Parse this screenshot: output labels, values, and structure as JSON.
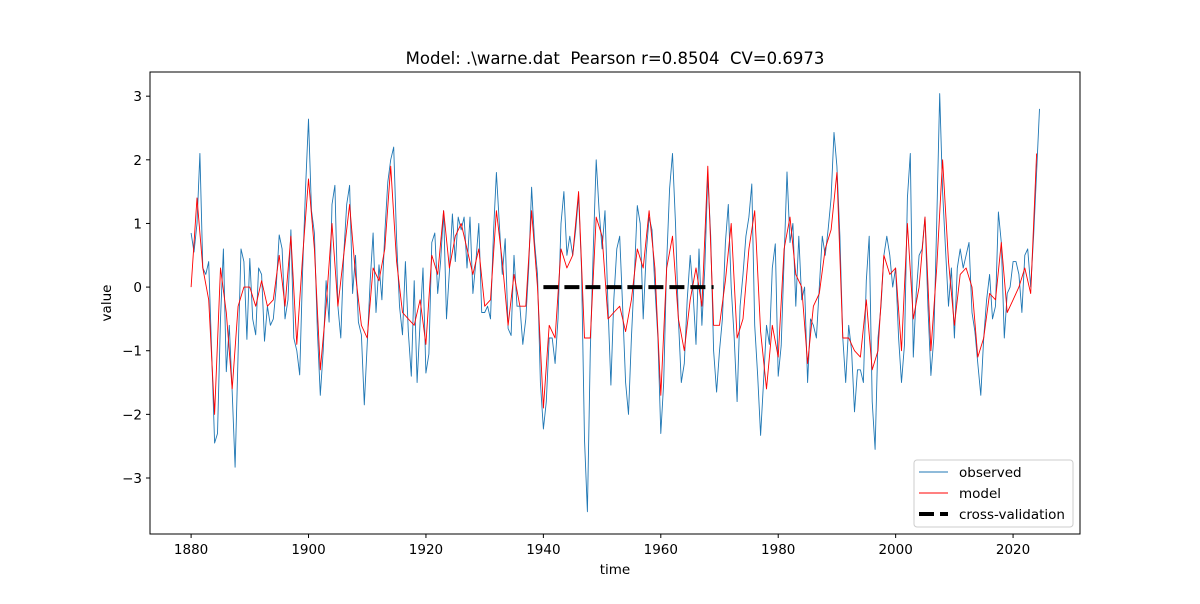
{
  "chart_data": {
    "type": "line",
    "title": "Model: .\\warne.dat  Pearson r=0.8504  CV=0.6973",
    "xlabel": "time",
    "ylabel": "value",
    "xlim": [
      1873,
      2031.4
    ],
    "ylim": [
      -3.88,
      3.38
    ],
    "xticks": [
      1880,
      1900,
      1920,
      1940,
      1960,
      1980,
      2000,
      2020
    ],
    "yticks": [
      -3,
      -2,
      -1,
      0,
      1,
      2,
      3
    ],
    "ytick_labels": [
      "−3",
      "−2",
      "−1",
      "0",
      "1",
      "2",
      "3"
    ],
    "grid": false,
    "legend_placement": "lower-right",
    "series": [
      {
        "name": "observed",
        "color": "#1f77b4",
        "x_start": 1880,
        "x_step": 0.5,
        "values": [
          0.85,
          0.55,
          1.0,
          2.1,
          0.3,
          0.2,
          0.4,
          -1.0,
          -2.45,
          -2.3,
          -0.5,
          0.6,
          -1.33,
          -0.6,
          -1.65,
          -2.83,
          -1.05,
          0.6,
          0.4,
          -0.82,
          0.45,
          -0.5,
          -0.75,
          0.3,
          0.2,
          -0.85,
          -0.3,
          -0.6,
          -0.5,
          0.0,
          0.82,
          0.6,
          -0.5,
          -0.2,
          0.9,
          -0.8,
          -1.0,
          -1.38,
          0.3,
          1.57,
          2.64,
          1.2,
          0.85,
          -0.66,
          -1.7,
          -1.0,
          0.1,
          -0.55,
          1.3,
          1.6,
          -0.3,
          -0.8,
          0.5,
          1.3,
          1.6,
          -0.1,
          0.5,
          -0.55,
          -0.75,
          -1.85,
          -0.9,
          0.1,
          0.85,
          -0.4,
          0.35,
          -0.2,
          0.85,
          1.65,
          2.0,
          2.2,
          0.75,
          -0.3,
          -0.75,
          0.4,
          -0.7,
          -1.4,
          0.1,
          -1.5,
          -0.55,
          0.3,
          -1.35,
          -1.05,
          0.7,
          0.85,
          -0.1,
          0.4,
          1.2,
          -0.5,
          0.25,
          1.15,
          0.4,
          1.1,
          0.9,
          1.1,
          0.3,
          1.1,
          -0.1,
          0.4,
          1.0,
          -0.4,
          -0.4,
          -0.3,
          -0.5,
          0.86,
          1.8,
          1.0,
          0.2,
          0.76,
          -0.65,
          -0.76,
          0.5,
          -0.3,
          -0.3,
          -0.9,
          -0.5,
          0.3,
          1.57,
          0.7,
          0.2,
          -1.5,
          -2.23,
          -1.8,
          -0.8,
          -0.8,
          -1.2,
          -0.5,
          1.0,
          1.5,
          0.5,
          0.8,
          0.5,
          0.9,
          1.44,
          0.3,
          -2.4,
          -3.53,
          -1.0,
          0.6,
          2.0,
          1.2,
          0.6,
          1.2,
          -0.3,
          -1.54,
          -0.2,
          0.6,
          0.8,
          -0.3,
          -1.5,
          -2.0,
          -0.8,
          0.2,
          1.28,
          1.0,
          -0.5,
          0.5,
          1.1,
          0.9,
          0.0,
          -0.8,
          -2.3,
          -1.5,
          0.4,
          1.55,
          2.1,
          1.0,
          -0.5,
          -1.5,
          -1.2,
          -0.2,
          0.5,
          -0.1,
          -0.9,
          0.6,
          -0.6,
          0.3,
          1.75,
          0.8,
          -1.0,
          -1.65,
          -1.0,
          -0.5,
          0.7,
          1.3,
          0.0,
          -0.8,
          -1.8,
          -0.3,
          0.2,
          0.8,
          1.1,
          1.62,
          -0.6,
          -1.4,
          -2.33,
          -1.5,
          -0.6,
          -0.9,
          0.3,
          0.68,
          -1.4,
          -0.92,
          0.44,
          1.81,
          0.7,
          1.0,
          -0.3,
          0.8,
          -0.2,
          0.0,
          -1.5,
          -0.5,
          -0.6,
          -0.8,
          0.0,
          0.8,
          0.5,
          0.9,
          1.4,
          2.43,
          1.9,
          0.8,
          -0.8,
          -1.5,
          -0.6,
          -1.0,
          -1.96,
          -1.3,
          -1.3,
          -1.5,
          0.1,
          0.8,
          -1.8,
          -2.55,
          -0.8,
          -0.3,
          0.5,
          0.8,
          0.5,
          0.0,
          0.3,
          -0.8,
          -1.5,
          -0.9,
          1.4,
          2.1,
          -1.1,
          -0.1,
          0.5,
          0.6,
          1.1,
          -0.3,
          -1.39,
          -0.8,
          1.0,
          3.04,
          1.5,
          0.6,
          -0.3,
          0.3,
          -0.8,
          0.3,
          0.6,
          0.3,
          0.5,
          0.7,
          -0.4,
          -0.7,
          -1.2,
          -1.7,
          -0.8,
          -0.2,
          0.2,
          -0.5,
          -0.3,
          1.18,
          0.7,
          -0.8,
          -0.1,
          0.0,
          0.4,
          0.4,
          0.2,
          -0.4,
          0.5,
          0.6,
          0.0,
          0.8,
          1.8,
          2.8
        ]
      },
      {
        "name": "model",
        "color": "#ff0000",
        "x_start": 1880,
        "x_step": 1,
        "values": [
          0.0,
          1.4,
          0.3,
          -0.2,
          -2.0,
          0.3,
          -0.4,
          -1.6,
          -0.3,
          0.0,
          0.0,
          -0.3,
          0.1,
          -0.3,
          -0.2,
          0.5,
          -0.3,
          0.8,
          -0.9,
          0.5,
          1.7,
          0.6,
          -1.3,
          -0.3,
          1.0,
          -0.3,
          0.5,
          1.3,
          0.2,
          -0.6,
          -0.8,
          0.3,
          0.1,
          0.6,
          1.9,
          0.4,
          -0.4,
          -0.5,
          -0.6,
          -0.2,
          -0.9,
          0.5,
          0.2,
          1.2,
          0.3,
          0.8,
          1.0,
          0.6,
          0.2,
          0.6,
          -0.3,
          -0.2,
          1.2,
          0.4,
          -0.6,
          0.2,
          -0.3,
          -0.3,
          1.2,
          0.0,
          -1.9,
          -0.6,
          -0.8,
          0.6,
          0.3,
          0.5,
          1.5,
          -0.8,
          -0.8,
          1.1,
          0.8,
          -0.5,
          -0.4,
          -0.3,
          -0.7,
          -0.2,
          0.6,
          0.3,
          1.2,
          0.3,
          -1.7,
          0.3,
          0.8,
          -0.5,
          -1.0,
          -0.2,
          0.3,
          -0.3,
          1.9,
          -0.6,
          -0.6,
          0.1,
          1.0,
          -0.8,
          -0.5,
          0.6,
          1.2,
          -0.7,
          -1.6,
          -0.6,
          -1.1,
          0.6,
          1.1,
          0.2,
          0.0,
          -1.2,
          -0.3,
          -0.1,
          0.6,
          0.9,
          1.8,
          -0.8,
          -0.8,
          -1.0,
          -1.1,
          -0.2,
          -1.3,
          -1.0,
          0.5,
          0.2,
          0.3,
          -1.0,
          1.0,
          -0.5,
          0.0,
          1.1,
          -1.0,
          0.3,
          2.0,
          0.4,
          -0.6,
          0.2,
          0.3,
          0.0,
          -1.1,
          -0.8,
          -0.1,
          -0.2,
          0.7,
          -0.4,
          -0.2,
          0.0,
          0.3,
          -0.1,
          2.1
        ]
      },
      {
        "name": "cross-validation",
        "color": "#000000",
        "style": "dashed",
        "x": [
          1940,
          1969
        ],
        "values": [
          0,
          0
        ]
      }
    ]
  }
}
